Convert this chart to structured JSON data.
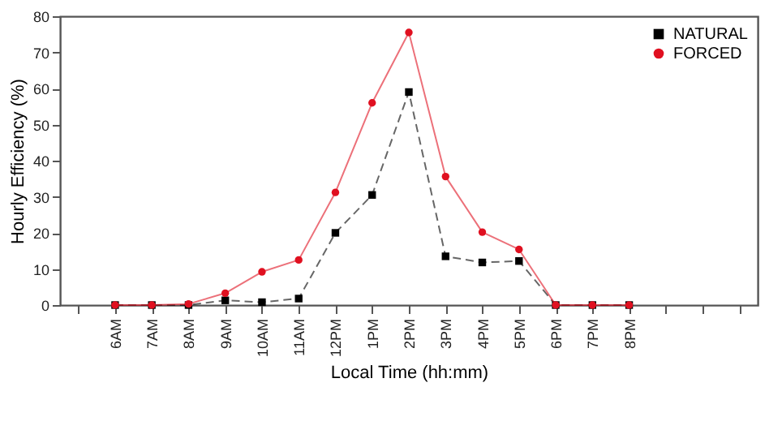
{
  "chart_data": {
    "type": "line",
    "xlabel": "Local Time (hh:mm)",
    "ylabel": "Hourly Efficiency (%)",
    "categories": [
      null,
      "6AM",
      "7AM",
      "8AM",
      "9AM",
      "10AM",
      "11AM",
      "12PM",
      "1PM",
      "2PM",
      "3PM",
      "4PM",
      "5PM",
      "6PM",
      "7PM",
      "8PM",
      null,
      null,
      null
    ],
    "series": [
      {
        "name": "NATURAL",
        "color": "#000000",
        "marker": "square",
        "line_style": "dashed",
        "values": [
          null,
          0,
          0,
          0,
          1.3,
          0.8,
          1.8,
          20,
          30.5,
          59,
          13.5,
          11.8,
          12.2,
          0,
          0,
          0,
          null,
          null,
          null
        ]
      },
      {
        "name": "FORCED",
        "color": "#e01020",
        "marker": "circle",
        "line_style": "solid",
        "values": [
          null,
          0,
          0,
          0.3,
          3.3,
          9.2,
          12.5,
          31.2,
          56,
          75.5,
          35.6,
          20.2,
          15.4,
          0,
          0,
          0,
          null,
          null,
          null
        ]
      }
    ],
    "ylim": [
      0,
      80
    ],
    "yticks": [
      0,
      10,
      20,
      30,
      40,
      50,
      60,
      70,
      80
    ],
    "grid": false,
    "legend": "top right"
  }
}
